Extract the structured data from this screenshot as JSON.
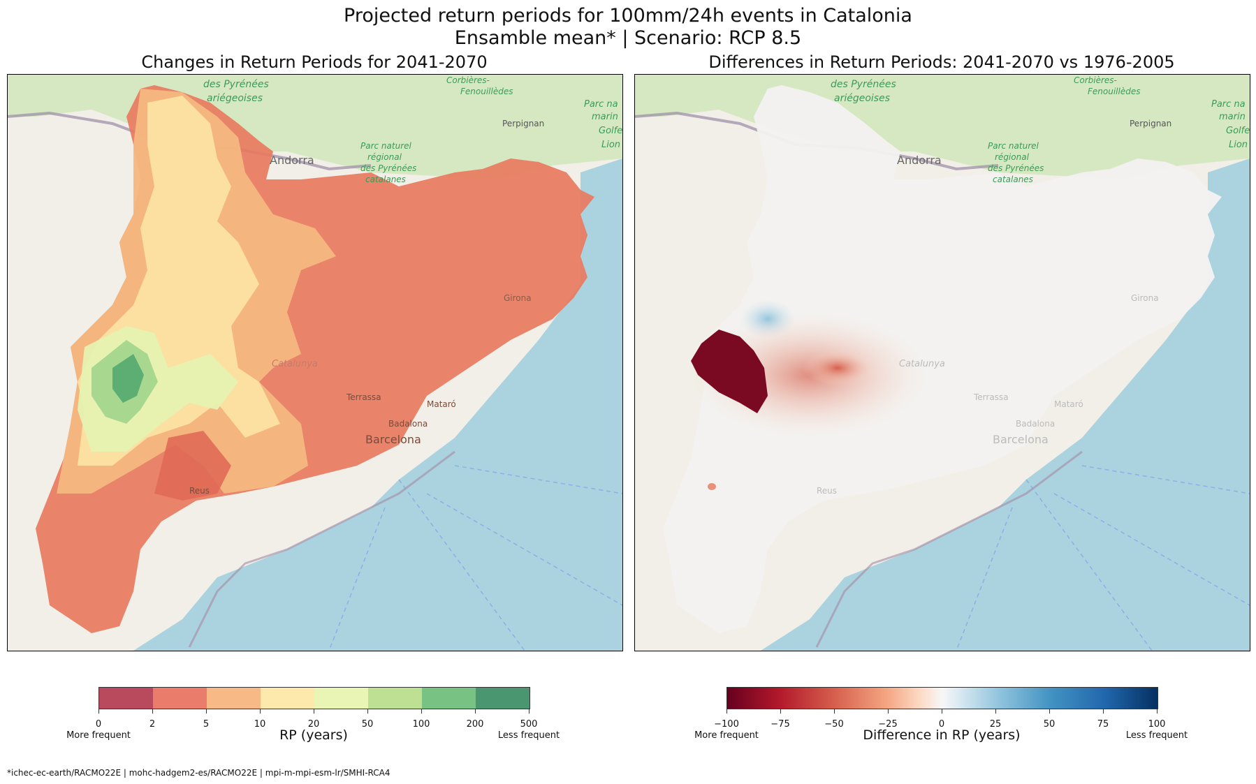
{
  "title_line1": "Projected return periods for 100mm/24h events in Catalonia",
  "title_line2": "Ensamble mean* | Scenario: RCP 8.5",
  "left": {
    "subtitle": "Changes in Return Periods for 2041-2070",
    "colorbar_label": "RP (years)",
    "ticks": [
      "0",
      "2",
      "5",
      "10",
      "20",
      "50",
      "100",
      "200",
      "500"
    ],
    "bin_colors": [
      "#b94a5e",
      "#e97c6b",
      "#f7b985",
      "#fde9ac",
      "#e9f5b4",
      "#bde093",
      "#78c383",
      "#4a9670"
    ],
    "low_label": "More frequent",
    "high_label": "Less frequent"
  },
  "right": {
    "subtitle": "Differences in Return Periods: 2041-2070 vs 1976-2005",
    "colorbar_label": "Difference in RP (years)",
    "ticks": [
      "−100",
      "−75",
      "−50",
      "−25",
      "0",
      "25",
      "50",
      "75",
      "100"
    ],
    "low_label": "More frequent",
    "high_label": "Less frequent"
  },
  "map_labels": {
    "pyrenees1": "des Pyrénées",
    "pyrenees2": "ariégeoises",
    "corbieres1": "Corbières-",
    "corbieres2": "Fenouillèdes",
    "perpignan": "Perpignan",
    "andorra": "Andorra",
    "parc1": "Parc naturel",
    "parc2": "régional",
    "parc3": "des Pyrénées",
    "parc4": "catalanes",
    "marine1": "Parc na",
    "marine2": "marin",
    "marine3": "Golfe",
    "marine4": "Lion",
    "girona": "Girona",
    "catalunya": "Catalunya",
    "terrassa": "Terrassa",
    "mataro": "Mataró",
    "badalona": "Badalona",
    "barcelona": "Barcelona",
    "reus": "Reus"
  },
  "footnote": "*ichec-ec-earth/RACMO22E | mohc-hadgem2-es/RACMO22E | mpi-m-mpi-esm-lr/SMHI-RCA4"
}
